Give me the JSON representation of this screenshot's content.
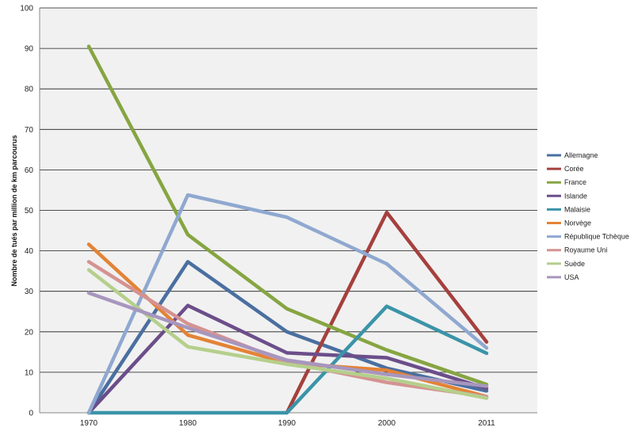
{
  "chart_data": {
    "type": "line",
    "title": "",
    "xlabel": "",
    "ylabel": "Nombre de tués par million de km parcourus",
    "categories": [
      "1970",
      "1980",
      "1990",
      "2000",
      "2011"
    ],
    "ylim": [
      0,
      100
    ],
    "yticks": [
      0,
      10,
      20,
      30,
      40,
      50,
      60,
      70,
      80,
      90,
      100
    ],
    "grid": true,
    "legend_position": "right",
    "series": [
      {
        "name": "Allemagne",
        "color": "#4a6fa0",
        "values": [
          0,
          37.3,
          20,
          11,
          5.4
        ]
      },
      {
        "name": "Corée",
        "color": "#a5403d",
        "values": [
          null,
          null,
          0,
          49.5,
          17.5
        ]
      },
      {
        "name": "France",
        "color": "#86a542",
        "values": [
          90.5,
          44,
          25.7,
          15.5,
          7
        ]
      },
      {
        "name": "Islande",
        "color": "#6b4e8a",
        "values": [
          0,
          26.5,
          14.8,
          13.6,
          6
        ]
      },
      {
        "name": "Malaisie",
        "color": "#3b94a8",
        "values": [
          0,
          0,
          0,
          26.3,
          14.7
        ]
      },
      {
        "name": "Norvège",
        "color": "#e38336",
        "values": [
          41.6,
          19.2,
          12.3,
          10.5,
          4
        ]
      },
      {
        "name": "République Tchèque",
        "color": "#8fa8d0",
        "values": [
          0,
          53.8,
          48.3,
          36.8,
          16
        ]
      },
      {
        "name": "Royaume Uni",
        "color": "#d49391",
        "values": [
          37.3,
          22,
          12.5,
          7.5,
          4
        ]
      },
      {
        "name": "Suède",
        "color": "#b5cf8c",
        "values": [
          35.3,
          16.3,
          12,
          8.5,
          3.6
        ]
      },
      {
        "name": "USA",
        "color": "#a796be",
        "values": [
          29.6,
          21,
          13,
          9.5,
          6.6
        ]
      }
    ]
  }
}
